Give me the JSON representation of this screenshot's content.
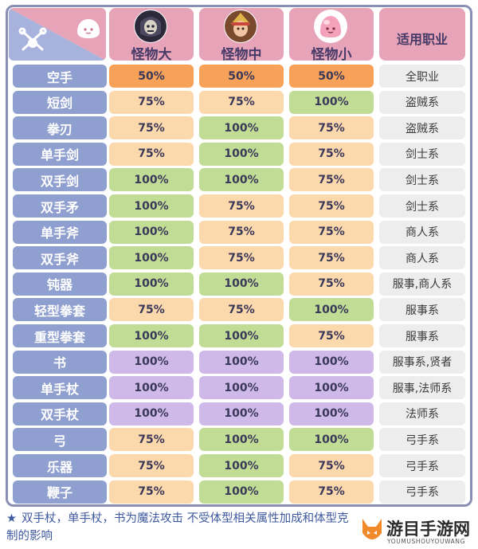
{
  "header": {
    "monsters": [
      {
        "label": "怪物大",
        "icon": "large-monster-icon"
      },
      {
        "label": "怪物中",
        "icon": "medium-monster-icon"
      },
      {
        "label": "怪物小",
        "icon": "small-monster-icon"
      }
    ],
    "job_header": "适用职业",
    "corner_icons": [
      "crossed-swords-icon",
      "poring-icon"
    ]
  },
  "colors": {
    "50": "#f7a159",
    "75": "#fcd8ad",
    "100_green": "#c1dd95",
    "100_purple": "#cfb9e8"
  },
  "rows": [
    {
      "weapon": "空手",
      "values": [
        "50%",
        "50%",
        "50%"
      ],
      "job": "全职业"
    },
    {
      "weapon": "短剑",
      "values": [
        "75%",
        "75%",
        "100%"
      ],
      "job": "盗贼系"
    },
    {
      "weapon": "拳刃",
      "values": [
        "75%",
        "100%",
        "75%"
      ],
      "job": "盗贼系"
    },
    {
      "weapon": "单手剑",
      "values": [
        "75%",
        "100%",
        "75%"
      ],
      "job": "剑士系"
    },
    {
      "weapon": "双手剑",
      "values": [
        "100%",
        "100%",
        "75%"
      ],
      "job": "剑士系"
    },
    {
      "weapon": "双手矛",
      "values": [
        "100%",
        "75%",
        "75%"
      ],
      "job": "剑士系"
    },
    {
      "weapon": "单手斧",
      "values": [
        "100%",
        "75%",
        "75%"
      ],
      "job": "商人系"
    },
    {
      "weapon": "双手斧",
      "values": [
        "100%",
        "75%",
        "75%"
      ],
      "job": "商人系"
    },
    {
      "weapon": "钝器",
      "values": [
        "100%",
        "100%",
        "75%"
      ],
      "job": "服事,商人系"
    },
    {
      "weapon": "轻型拳套",
      "values": [
        "75%",
        "75%",
        "100%"
      ],
      "job": "服事系"
    },
    {
      "weapon": "重型拳套",
      "values": [
        "100%",
        "100%",
        "75%"
      ],
      "job": "服事系"
    },
    {
      "weapon": "书",
      "values": [
        "100%",
        "100%",
        "100%"
      ],
      "job": "服事系,贤者"
    },
    {
      "weapon": "单手杖",
      "values": [
        "100%",
        "100%",
        "100%"
      ],
      "job": "服事,法师系"
    },
    {
      "weapon": "双手杖",
      "values": [
        "100%",
        "100%",
        "100%"
      ],
      "job": "法师系"
    },
    {
      "weapon": "弓",
      "values": [
        "75%",
        "100%",
        "100%"
      ],
      "job": "弓手系"
    },
    {
      "weapon": "乐器",
      "values": [
        "75%",
        "100%",
        "75%"
      ],
      "job": "弓手系"
    },
    {
      "weapon": "鞭子",
      "values": [
        "75%",
        "100%",
        "75%"
      ],
      "job": "弓手系"
    }
  ],
  "magic_rows": [
    "书",
    "单手杖",
    "双手杖"
  ],
  "note": {
    "icon": "star-icon",
    "text": "双手杖，单手杖，书为魔法攻击 不受体型相关属性加成和体型克制的影响"
  },
  "watermark": {
    "name": "游目手游网",
    "sub": "YOUMUSHOUYOUWANG"
  }
}
